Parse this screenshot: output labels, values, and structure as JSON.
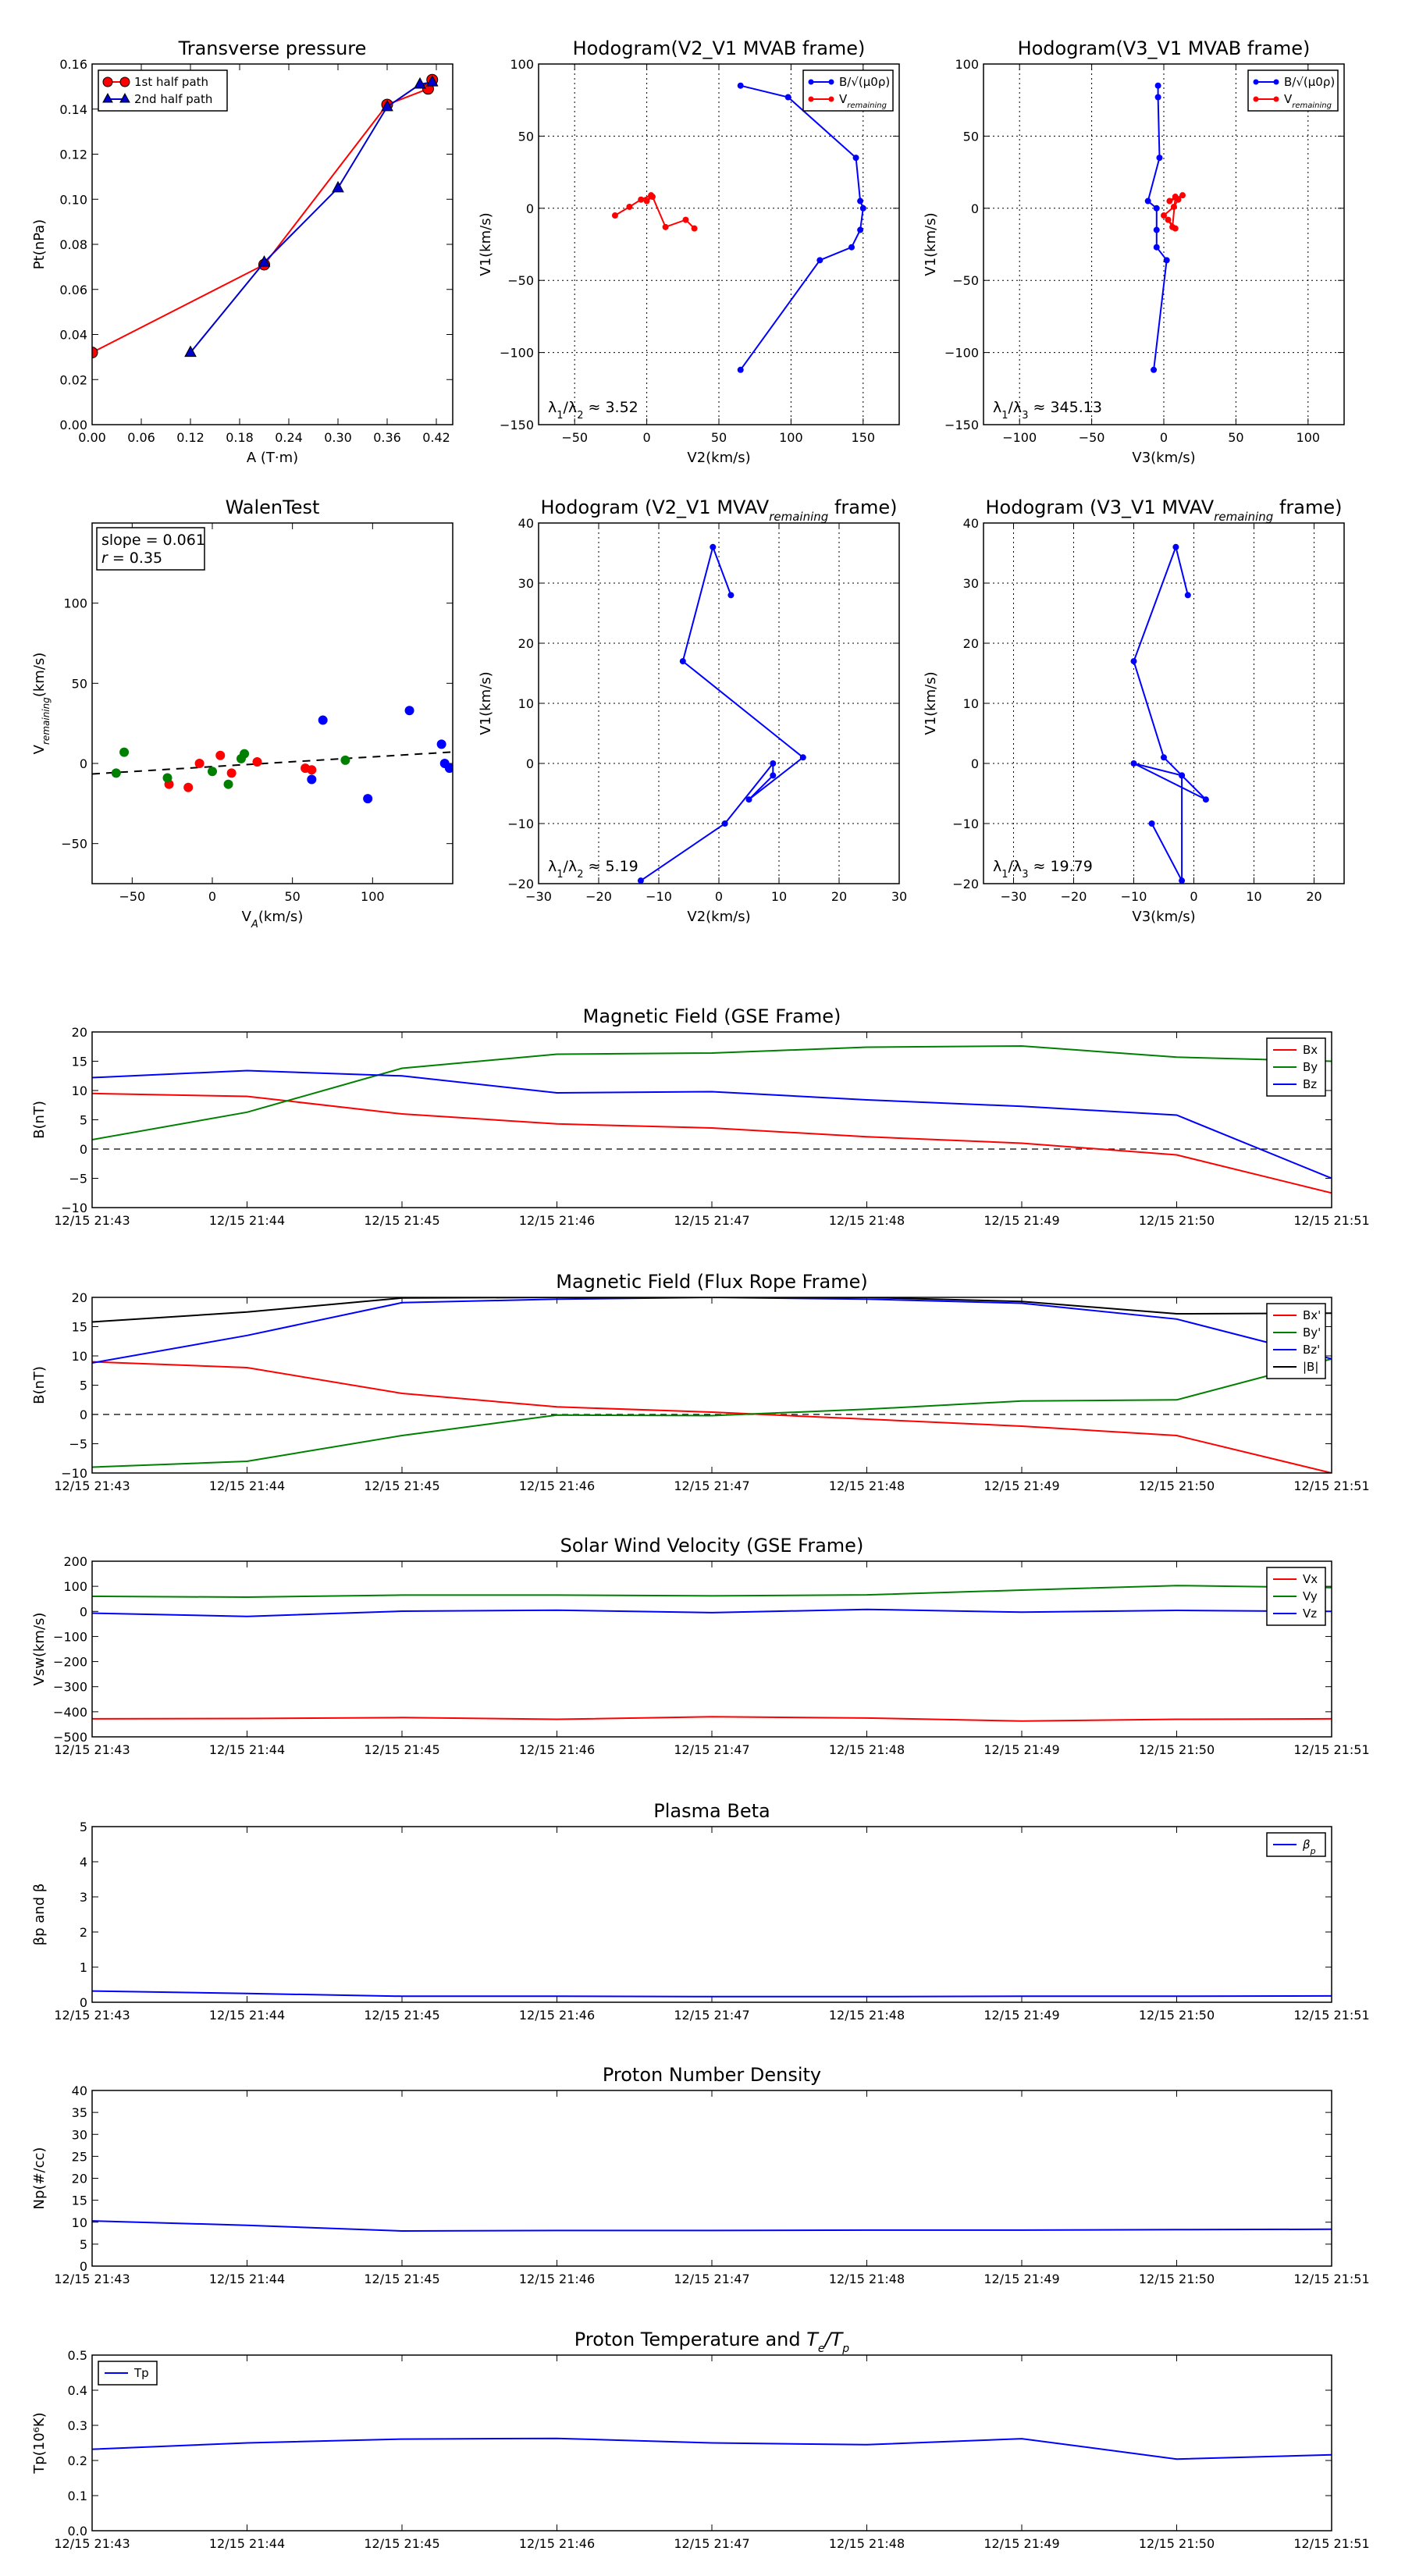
{
  "chart_data": [
    {
      "id": "transverse-pressure",
      "type": "line",
      "title": "Transverse pressure",
      "xlabel": "A (T·m)",
      "ylabel": "Pt(nPa)",
      "xlim": [
        0.0,
        0.44
      ],
      "ylim": [
        0.0,
        0.16
      ],
      "xticks": [
        0.0,
        0.06,
        0.12,
        0.18,
        0.24,
        0.3,
        0.36,
        0.42
      ],
      "yticks": [
        0.0,
        0.02,
        0.04,
        0.06,
        0.08,
        0.1,
        0.12,
        0.14,
        0.16
      ],
      "xtick_labels": [
        "0.00",
        "0.06",
        "0.12",
        "0.18",
        "0.24",
        "0.30",
        "0.36",
        "0.42"
      ],
      "ytick_labels": [
        "0.00",
        "0.02",
        "0.04",
        "0.06",
        "0.08",
        "0.10",
        "0.12",
        "0.14",
        "0.16"
      ],
      "legend_position": "upper-left",
      "series": [
        {
          "name": "1st half path",
          "color": "#ff0000",
          "marker": "circle",
          "x": [
            0.0,
            0.21,
            0.36,
            0.41,
            0.415
          ],
          "y": [
            0.032,
            0.071,
            0.142,
            0.149,
            0.153
          ]
        },
        {
          "name": "2nd half path",
          "color": "#0000cc",
          "marker": "triangle",
          "x": [
            0.12,
            0.21,
            0.3,
            0.36,
            0.4,
            0.415
          ],
          "y": [
            0.032,
            0.072,
            0.105,
            0.141,
            0.151,
            0.152
          ]
        }
      ]
    },
    {
      "id": "hodogram-v2-v1-mvab",
      "type": "line",
      "title": "Hodogram(V2_V1 MVAB frame)",
      "xlabel": "V2(km/s)",
      "ylabel": "V1(km/s)",
      "xlim": [
        -75,
        175
      ],
      "ylim": [
        -150,
        100
      ],
      "xticks": [
        -50,
        0,
        50,
        100,
        150
      ],
      "yticks": [
        -150,
        -100,
        -50,
        0,
        50,
        100
      ],
      "xtick_labels": [
        "−50",
        "0",
        "50",
        "100",
        "150"
      ],
      "ytick_labels": [
        "−150",
        "−100",
        "−50",
        "0",
        "50",
        "100"
      ],
      "grid": true,
      "legend_position": "upper-right",
      "annotation": "λ1/λ2 ≈ 3.52",
      "series": [
        {
          "name": "B/√(μ0ρ)",
          "color": "#0000ff",
          "marker": "dot",
          "x": [
            65,
            98,
            145,
            148,
            150,
            148,
            142,
            120,
            65
          ],
          "y": [
            85,
            77,
            35,
            5,
            0,
            -15,
            -27,
            -36,
            -112
          ]
        },
        {
          "name": "Vremaining",
          "color": "#ff0000",
          "marker": "dot",
          "x": [
            -22,
            -12,
            -4,
            3,
            0,
            4,
            13,
            27,
            33
          ],
          "y": [
            -5,
            1,
            6,
            9,
            5,
            8,
            -13,
            -8,
            -14
          ]
        }
      ]
    },
    {
      "id": "hodogram-v3-v1-mvab",
      "type": "line",
      "title": "Hodogram(V3_V1 MVAB frame)",
      "xlabel": "V3(km/s)",
      "ylabel": "V1(km/s)",
      "xlim": [
        -125,
        125
      ],
      "ylim": [
        -150,
        100
      ],
      "xticks": [
        -100,
        -50,
        0,
        50,
        100
      ],
      "yticks": [
        -150,
        -100,
        -50,
        0,
        50,
        100
      ],
      "xtick_labels": [
        "−100",
        "−50",
        "0",
        "50",
        "100"
      ],
      "ytick_labels": [
        "−150",
        "−100",
        "−50",
        "0",
        "50",
        "100"
      ],
      "grid": true,
      "legend_position": "upper-right",
      "annotation": "λ1/λ3 ≈ 345.13",
      "series": [
        {
          "name": "B/√(μ0ρ)",
          "color": "#0000ff",
          "marker": "dot",
          "x": [
            -4,
            -4,
            -3,
            -11,
            -5,
            -5,
            -5,
            2,
            -7
          ],
          "y": [
            85,
            77,
            35,
            5,
            0,
            -15,
            -27,
            -36,
            -112
          ]
        },
        {
          "name": "Vremaining",
          "color": "#ff0000",
          "marker": "dot",
          "x": [
            0,
            7,
            10,
            13,
            4,
            8,
            6,
            3,
            8
          ],
          "y": [
            -5,
            1,
            6,
            9,
            5,
            8,
            -13,
            -8,
            -14
          ]
        }
      ]
    },
    {
      "id": "walen-test",
      "type": "scatter",
      "title": "WalenTest",
      "xlabel": "VA(km/s)",
      "ylabel": "Vremaining(km/s)",
      "xlim": [
        -75,
        150
      ],
      "ylim": [
        -75,
        150
      ],
      "xticks": [
        -50,
        0,
        50,
        100
      ],
      "yticks": [
        -50,
        0,
        50,
        100
      ],
      "xtick_labels": [
        "−50",
        "0",
        "50",
        "100"
      ],
      "ytick_labels": [
        "−50",
        "0",
        "50",
        "100"
      ],
      "annotation": [
        "slope = 0.061",
        "r = 0.35"
      ],
      "fit_line": {
        "slope": 0.061,
        "intercept": -2,
        "color": "#000000",
        "dashed": true
      },
      "series": [
        {
          "color": "#ff0000",
          "x": [
            -27,
            -15,
            -8,
            5,
            12,
            28,
            58,
            62
          ],
          "y": [
            -13,
            -15,
            0,
            5,
            -6,
            1,
            -3,
            -4
          ]
        },
        {
          "color": "#008000",
          "x": [
            -55,
            -60,
            -28,
            0,
            10,
            18,
            20,
            83
          ],
          "y": [
            7,
            -6,
            -9,
            -5,
            -13,
            3,
            6,
            2
          ]
        },
        {
          "color": "#0000ff",
          "x": [
            62,
            69,
            97,
            123,
            143,
            145,
            148
          ],
          "y": [
            -10,
            27,
            -22,
            33,
            12,
            0,
            -3
          ]
        }
      ]
    },
    {
      "id": "hodogram-v2-v1-mvav",
      "type": "line",
      "title": "Hodogram (V2_V1 MVAV",
      "title_subscript": "remaining",
      "title_suffix": " frame)",
      "xlabel": "V2(km/s)",
      "ylabel": "V1(km/s)",
      "xlim": [
        -30,
        30
      ],
      "ylim": [
        -20,
        40
      ],
      "xticks": [
        -30,
        -20,
        -10,
        0,
        10,
        20,
        30
      ],
      "yticks": [
        -20,
        -10,
        0,
        10,
        20,
        30,
        40
      ],
      "xtick_labels": [
        "−30",
        "−20",
        "−10",
        "0",
        "10",
        "20",
        "30"
      ],
      "ytick_labels": [
        "−20",
        "−10",
        "0",
        "10",
        "20",
        "30",
        "40"
      ],
      "grid": true,
      "annotation": "λ1/λ2 ≈ 5.19",
      "series": [
        {
          "color": "#0000ff",
          "marker": "dot",
          "x": [
            2,
            -1,
            -6,
            14,
            5,
            9,
            9,
            1,
            -13
          ],
          "y": [
            28,
            36,
            17,
            1,
            -6,
            -2,
            0,
            -10,
            -19.5
          ]
        }
      ]
    },
    {
      "id": "hodogram-v3-v1-mvav",
      "type": "line",
      "title": "Hodogram (V3_V1 MVAV",
      "title_subscript": "remaining",
      "title_suffix": " frame)",
      "xlabel": "V3(km/s)",
      "ylabel": "V1(km/s)",
      "xlim": [
        -35,
        25
      ],
      "ylim": [
        -20,
        40
      ],
      "xticks": [
        -30,
        -20,
        -10,
        0,
        10,
        20
      ],
      "yticks": [
        -20,
        -10,
        0,
        10,
        20,
        30,
        40
      ],
      "xtick_labels": [
        "−30",
        "−20",
        "−10",
        "0",
        "10",
        "20"
      ],
      "ytick_labels": [
        "−20",
        "−10",
        "0",
        "10",
        "20",
        "30",
        "40"
      ],
      "grid": true,
      "annotation": "λ1/λ3 ≈ 19.79",
      "series": [
        {
          "color": "#0000ff",
          "marker": "dot",
          "x": [
            -1,
            -3,
            -10,
            -5,
            -2,
            2,
            -10,
            -2,
            -2,
            -7
          ],
          "y": [
            28,
            36,
            17,
            1,
            -2,
            -6,
            0,
            -2,
            -19.5,
            -10
          ]
        }
      ]
    },
    {
      "id": "magnetic-field-gse",
      "type": "line",
      "title": "Magnetic Field (GSE Frame)",
      "ylabel": "B(nT)",
      "x_count": 9,
      "xtick_labels": [
        "12/15 21:43",
        "12/15 21:44",
        "12/15 21:45",
        "12/15 21:46",
        "12/15 21:47",
        "12/15 21:48",
        "12/15 21:49",
        "12/15 21:50",
        "12/15 21:51"
      ],
      "ylim": [
        -10,
        20
      ],
      "yticks": [
        -10,
        -5,
        0,
        5,
        10,
        15,
        20
      ],
      "ytick_labels": [
        "−10",
        "−5",
        "0",
        "5",
        "10",
        "15",
        "20"
      ],
      "zero_line": true,
      "legend_position": "upper-right",
      "series": [
        {
          "name": "Bx",
          "color": "#ff0000",
          "x": [
            0,
            1,
            2,
            3,
            4,
            5,
            6,
            7,
            8
          ],
          "y": [
            9.5,
            9.0,
            6.0,
            4.3,
            3.6,
            2.1,
            1.0,
            -1.0,
            -7.5
          ]
        },
        {
          "name": "By",
          "color": "#008000",
          "x": [
            0,
            1,
            2,
            3,
            4,
            5,
            6,
            7,
            8
          ],
          "y": [
            1.6,
            6.3,
            13.8,
            16.2,
            16.4,
            17.4,
            17.6,
            15.7,
            15.0
          ]
        },
        {
          "name": "Bz",
          "color": "#0000ff",
          "x": [
            0,
            1,
            2,
            3,
            4,
            5,
            6,
            7,
            8
          ],
          "y": [
            12.2,
            13.4,
            12.5,
            9.6,
            9.8,
            8.4,
            7.3,
            5.8,
            -5.0
          ]
        }
      ]
    },
    {
      "id": "magnetic-field-flux-rope",
      "type": "line",
      "title": "Magnetic Field (Flux Rope Frame)",
      "ylabel": "B(nT)",
      "x_count": 9,
      "xtick_labels": [
        "12/15 21:43",
        "12/15 21:44",
        "12/15 21:45",
        "12/15 21:46",
        "12/15 21:47",
        "12/15 21:48",
        "12/15 21:49",
        "12/15 21:50",
        "12/15 21:51"
      ],
      "ylim": [
        -10,
        20
      ],
      "yticks": [
        -10,
        -5,
        0,
        5,
        10,
        15,
        20
      ],
      "ytick_labels": [
        "−10",
        "−5",
        "0",
        "5",
        "10",
        "15",
        "20"
      ],
      "zero_line": true,
      "legend_position": "upper-right",
      "series": [
        {
          "name": "Bx'",
          "color": "#ff0000",
          "x": [
            0,
            1,
            2,
            3,
            4,
            5,
            6,
            7,
            8
          ],
          "y": [
            9.0,
            8.0,
            3.6,
            1.3,
            0.4,
            -0.8,
            -2.0,
            -3.6,
            -10.0
          ]
        },
        {
          "name": "By'",
          "color": "#008000",
          "x": [
            0,
            1,
            2,
            3,
            4,
            5,
            6,
            7,
            8
          ],
          "y": [
            -9.0,
            -8.0,
            -3.6,
            -0.1,
            -0.2,
            0.9,
            2.3,
            2.5,
            9.5
          ]
        },
        {
          "name": "Bz'",
          "color": "#0000ff",
          "x": [
            0,
            1,
            2,
            3,
            4,
            5,
            6,
            7,
            8
          ],
          "y": [
            8.8,
            13.5,
            19.1,
            19.7,
            20.0,
            19.7,
            19.0,
            16.3,
            9.5
          ]
        },
        {
          "name": "|B|",
          "color": "#000000",
          "x": [
            0,
            1,
            2,
            3,
            4,
            5,
            6,
            7,
            8
          ],
          "y": [
            15.8,
            17.5,
            19.9,
            20.0,
            20.0,
            20.0,
            19.3,
            17.2,
            17.3
          ]
        }
      ]
    },
    {
      "id": "solar-wind-velocity",
      "type": "line",
      "title": "Solar Wind Velocity (GSE Frame)",
      "ylabel": "Vsw(km/s)",
      "x_count": 9,
      "xtick_labels": [
        "12/15 21:43",
        "12/15 21:44",
        "12/15 21:45",
        "12/15 21:46",
        "12/15 21:47",
        "12/15 21:48",
        "12/15 21:49",
        "12/15 21:50",
        "12/15 21:51"
      ],
      "ylim": [
        -500,
        200
      ],
      "yticks": [
        -500,
        -400,
        -300,
        -200,
        -100,
        0,
        100,
        200
      ],
      "ytick_labels": [
        "−500",
        "−400",
        "−300",
        "−200",
        "−100",
        "0",
        "100",
        "200"
      ],
      "legend_position": "upper-right",
      "series": [
        {
          "name": "Vx",
          "color": "#ff0000",
          "x": [
            0,
            1,
            2,
            3,
            4,
            5,
            6,
            7,
            8
          ],
          "y": [
            -428,
            -427,
            -423,
            -430,
            -420,
            -425,
            -437,
            -430,
            -428
          ]
        },
        {
          "name": "Vy",
          "color": "#008000",
          "x": [
            0,
            1,
            2,
            3,
            4,
            5,
            6,
            7,
            8
          ],
          "y": [
            60,
            57,
            65,
            65,
            62,
            66,
            85,
            103,
            95
          ]
        },
        {
          "name": "Vz",
          "color": "#0000ff",
          "x": [
            0,
            1,
            2,
            3,
            4,
            5,
            6,
            7,
            8
          ],
          "y": [
            -7,
            -20,
            1,
            5,
            -5,
            8,
            -3,
            4,
            0
          ]
        }
      ]
    },
    {
      "id": "plasma-beta",
      "type": "line",
      "title": "Plasma Beta",
      "ylabel": "βp and β",
      "x_count": 9,
      "xtick_labels": [
        "12/15 21:43",
        "12/15 21:44",
        "12/15 21:45",
        "12/15 21:46",
        "12/15 21:47",
        "12/15 21:48",
        "12/15 21:49",
        "12/15 21:50",
        "12/15 21:51"
      ],
      "ylim": [
        0,
        5
      ],
      "yticks": [
        0,
        1,
        2,
        3,
        4,
        5
      ],
      "ytick_labels": [
        "0",
        "1",
        "2",
        "3",
        "4",
        "5"
      ],
      "legend_position": "upper-right",
      "series": [
        {
          "name": "βp",
          "color": "#0000ff",
          "x": [
            0,
            1,
            2,
            3,
            4,
            5,
            6,
            7,
            8
          ],
          "y": [
            0.32,
            0.25,
            0.17,
            0.17,
            0.16,
            0.16,
            0.17,
            0.17,
            0.18
          ]
        }
      ]
    },
    {
      "id": "proton-number-density",
      "type": "line",
      "title": "Proton Number Density",
      "ylabel": "Np(#/cc)",
      "x_count": 9,
      "xtick_labels": [
        "12/15 21:43",
        "12/15 21:44",
        "12/15 21:45",
        "12/15 21:46",
        "12/15 21:47",
        "12/15 21:48",
        "12/15 21:49",
        "12/15 21:50",
        "12/15 21:51"
      ],
      "ylim": [
        0,
        40
      ],
      "yticks": [
        0,
        5,
        10,
        15,
        20,
        25,
        30,
        35,
        40
      ],
      "ytick_labels": [
        "0",
        "5",
        "10",
        "15",
        "20",
        "25",
        "30",
        "35",
        "40"
      ],
      "series": [
        {
          "color": "#0000ff",
          "x": [
            0,
            1,
            2,
            3,
            4,
            5,
            6,
            7,
            8
          ],
          "y": [
            10.3,
            9.3,
            8.0,
            8.1,
            8.1,
            8.2,
            8.2,
            8.3,
            8.4
          ]
        }
      ]
    },
    {
      "id": "proton-temperature",
      "type": "line",
      "title": "Proton Temperature and Te/Tp",
      "ylabel": "Tp(10⁶K)",
      "x_count": 9,
      "xtick_labels": [
        "12/15 21:43",
        "12/15 21:44",
        "12/15 21:45",
        "12/15 21:46",
        "12/15 21:47",
        "12/15 21:48",
        "12/15 21:49",
        "12/15 21:50",
        "12/15 21:51"
      ],
      "ylim": [
        0,
        0.5
      ],
      "yticks": [
        0,
        0.1,
        0.2,
        0.3,
        0.4,
        0.5
      ],
      "ytick_labels": [
        "0.0",
        "0.1",
        "0.2",
        "0.3",
        "0.4",
        "0.5"
      ],
      "legend_position": "upper-left",
      "series": [
        {
          "name": "Tp",
          "color": "#0000ff",
          "x": [
            0,
            1,
            2,
            3,
            4,
            5,
            6,
            7,
            8
          ],
          "y": [
            0.232,
            0.25,
            0.261,
            0.263,
            0.25,
            0.245,
            0.262,
            0.204,
            0.216
          ]
        }
      ]
    }
  ]
}
